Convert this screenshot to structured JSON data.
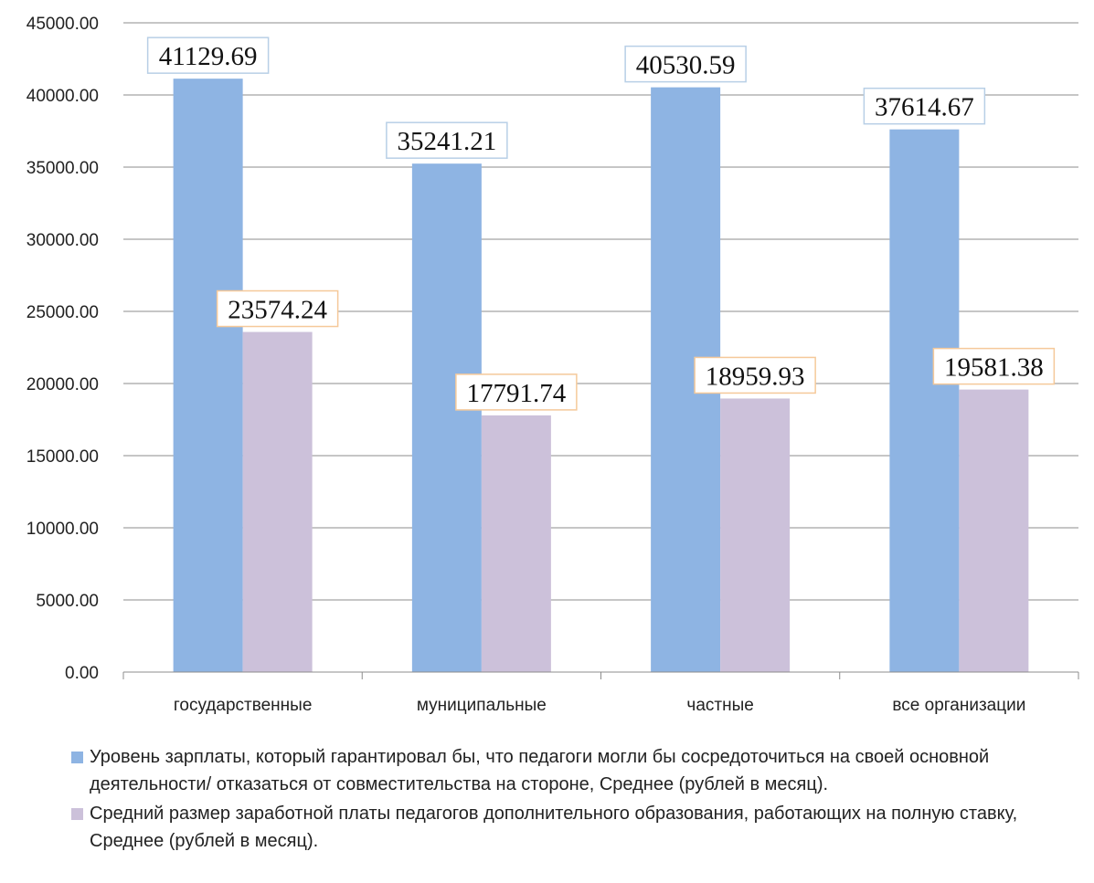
{
  "chart_data": {
    "type": "bar",
    "categories": [
      "государственные",
      "муниципальные",
      "частные",
      "все организации"
    ],
    "series": [
      {
        "name": "Уровень зарплаты, который гарантировал бы, что педагоги могли бы сосредоточиться на своей основной деятельности/ отказаться от совместительства на стороне, Среднее (рублей в месяц).",
        "values": [
          41129.69,
          35241.21,
          40530.59,
          37614.67
        ],
        "labels": [
          "41129.69",
          "35241.21",
          "40530.59",
          "37614.67"
        ],
        "color": "#8eb4e3",
        "label_border": "#b8cfe6"
      },
      {
        "name": "Средний размер заработной платы педагогов дополнительного образования, работающих на полную ставку, Среднее (рублей в месяц).",
        "values": [
          23574.24,
          17791.74,
          18959.93,
          19581.38
        ],
        "labels": [
          "23574.24",
          "17791.74",
          "18959.93",
          "19581.38"
        ],
        "color": "#ccc1da",
        "label_border": "#f5c99a"
      }
    ],
    "ylim": [
      0,
      45000
    ],
    "yticks": [
      "0.00",
      "5000.00",
      "10000.00",
      "15000.00",
      "20000.00",
      "25000.00",
      "30000.00",
      "35000.00",
      "40000.00",
      "45000.00"
    ],
    "grid": true,
    "legend_position": "bottom"
  }
}
